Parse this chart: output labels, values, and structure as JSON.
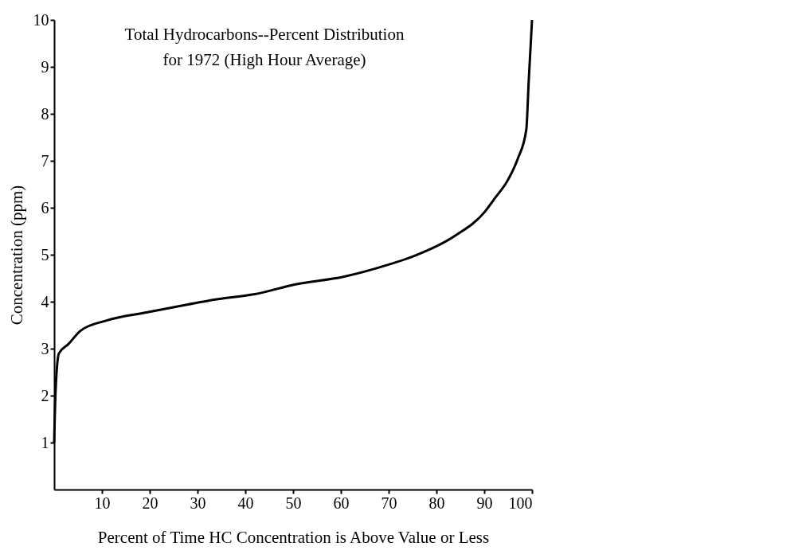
{
  "chart_data": {
    "type": "line",
    "title": "Total Hydrocarbons--Percent Distribution",
    "subtitle": "for 1972 (High Hour Average)",
    "xlabel": "Percent of Time HC Concentration is Above Value or Less",
    "ylabel": "Concentration (ppm)",
    "x": [
      0,
      0.3,
      1,
      3,
      5.5,
      11,
      19.3,
      28,
      34,
      42,
      50.5,
      60.5,
      70,
      75,
      84,
      90,
      92.2,
      95,
      97,
      98.8,
      99.3,
      100
    ],
    "series": [
      {
        "color": "#000000",
        "values": [
          1.0,
          2.1,
          2.9,
          3.1,
          3.38,
          3.6,
          3.77,
          3.94,
          4.05,
          4.16,
          4.37,
          4.53,
          4.79,
          4.96,
          5.41,
          5.9,
          6.2,
          6.6,
          7.04,
          7.66,
          8.68,
          10
        ]
      }
    ],
    "xlim": [
      0,
      100
    ],
    "ylim": [
      0,
      10
    ],
    "xticks": [
      10,
      20,
      30,
      40,
      50,
      60,
      70,
      80,
      90,
      100
    ],
    "yticks": [
      1,
      2,
      3,
      4,
      5,
      6,
      7,
      8,
      9,
      10
    ],
    "grid": false
  }
}
